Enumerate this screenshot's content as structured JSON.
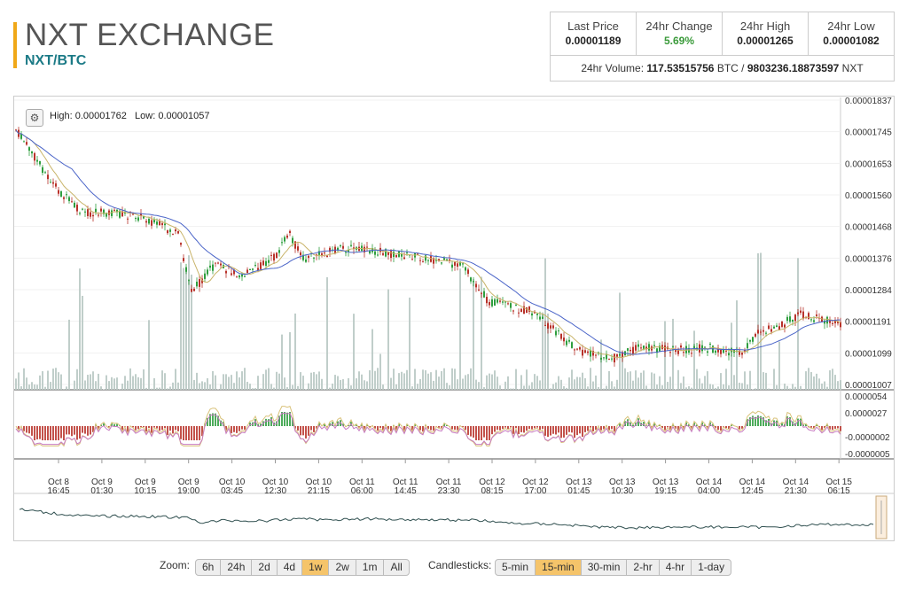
{
  "header": {
    "title": "NXT EXCHANGE",
    "pair": "NXT/BTC"
  },
  "stats": {
    "last_price_label": "Last Price",
    "last_price": "0.00001189",
    "change_label": "24hr Change",
    "change": "5.69%",
    "high_label": "24hr High",
    "high": "0.00001265",
    "low_label": "24hr Low",
    "low": "0.00001082",
    "volume_prefix": "24hr Volume:",
    "volume_btc": "117.53515756",
    "btc_unit": "BTC",
    "sep": "/",
    "volume_nxt": "9803236.18873597",
    "nxt_unit": "NXT"
  },
  "chart": {
    "high_label": "High: 0.00001762",
    "low_label": "Low: 0.00001057",
    "price_ticks": [
      "0.00001837",
      "0.00001745",
      "0.00001653",
      "0.00001560",
      "0.00001468",
      "0.00001376",
      "0.00001284",
      "0.00001191",
      "0.00001099",
      "0.00001007"
    ],
    "macd_ticks": [
      "0.0000054",
      "0.0000027",
      "-0.0000002",
      "-0.0000005"
    ],
    "x_ticks": [
      [
        "Oct 8",
        "16:45"
      ],
      [
        "Oct 9",
        "01:30"
      ],
      [
        "Oct 9",
        "10:15"
      ],
      [
        "Oct 9",
        "19:00"
      ],
      [
        "Oct 10",
        "03:45"
      ],
      [
        "Oct 10",
        "12:30"
      ],
      [
        "Oct 10",
        "21:15"
      ],
      [
        "Oct 11",
        "06:00"
      ],
      [
        "Oct 11",
        "14:45"
      ],
      [
        "Oct 11",
        "23:30"
      ],
      [
        "Oct 12",
        "08:15"
      ],
      [
        "Oct 12",
        "17:00"
      ],
      [
        "Oct 13",
        "01:45"
      ],
      [
        "Oct 13",
        "10:30"
      ],
      [
        "Oct 13",
        "19:15"
      ],
      [
        "Oct 14",
        "04:00"
      ],
      [
        "Oct 14",
        "12:45"
      ],
      [
        "Oct 14",
        "21:30"
      ],
      [
        "Oct 15",
        "06:15"
      ]
    ],
    "colors": {
      "up": "#2e9e3e",
      "down": "#b8322a",
      "ma_fast": "#c9b46a",
      "ma_slow": "#4a64c8",
      "volume": "#b9c9c4",
      "nav": "#2f4f4f"
    }
  },
  "chart_data": {
    "type": "candlestick",
    "x": [
      "Oct 8 16:45",
      "Oct 9 01:30",
      "Oct 9 10:15",
      "Oct 9 19:00",
      "Oct 10 03:45",
      "Oct 10 12:30",
      "Oct 10 21:15",
      "Oct 11 06:00",
      "Oct 11 14:45",
      "Oct 11 23:30",
      "Oct 12 08:15",
      "Oct 12 17:00",
      "Oct 13 01:45",
      "Oct 13 10:30",
      "Oct 13 19:15",
      "Oct 14 04:00",
      "Oct 14 12:45",
      "Oct 14 21:30",
      "Oct 15 06:15"
    ],
    "close": [
      1.6e-05,
      1.49e-05,
      1.47e-05,
      1.4e-05,
      1.36e-05,
      1.41e-05,
      1.38e-05,
      1.37e-05,
      1.37e-05,
      1.36e-05,
      1.26e-05,
      1.2e-05,
      1.1e-05,
      1.12e-05,
      1.11e-05,
      1.11e-05,
      1.18e-05,
      1.2e-05,
      1.19e-05
    ],
    "ylim": [
      1.007e-05,
      1.837e-05
    ]
  },
  "zoom": {
    "label": "Zoom:",
    "options": [
      "6h",
      "24h",
      "2d",
      "4d",
      "1w",
      "2w",
      "1m",
      "All"
    ],
    "active": "1w"
  },
  "candles": {
    "label": "Candlesticks:",
    "options": [
      "5-min",
      "15-min",
      "30-min",
      "2-hr",
      "4-hr",
      "1-day"
    ],
    "active": "15-min"
  }
}
